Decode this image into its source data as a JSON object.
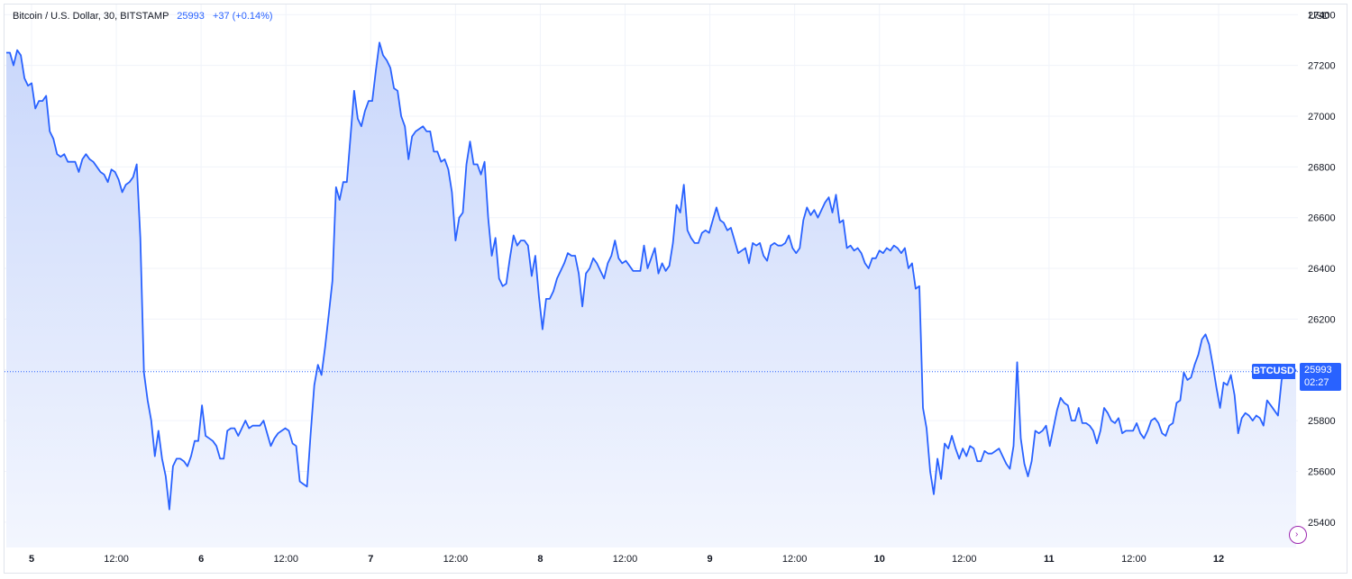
{
  "header": {
    "symbol_title": "Bitcoin / U.S. Dollar, 30, BITSTAMP",
    "last_price": "25993",
    "change": "+37 (+0.14%)"
  },
  "currency_label": "USD",
  "price_badge": {
    "symbol": "BTCUSD",
    "price": "25993",
    "countdown": "02:27"
  },
  "colors": {
    "line": "#2962ff",
    "fill_top": "#c9d7fb",
    "fill_bottom": "#f3f6fe",
    "grid": "#f0f3fa",
    "badge": "#2962ff"
  },
  "chart_data": {
    "type": "area",
    "series": [
      {
        "values": [
          27250,
          27250,
          27200,
          27260,
          27240,
          27150,
          27120,
          27130,
          27030,
          27060,
          27060,
          27080,
          26940,
          26910,
          26850,
          26840,
          26850,
          26820,
          26820,
          26820,
          26780,
          26830,
          26850,
          26830,
          26820,
          26800,
          26780,
          26770,
          26740,
          26790,
          26780,
          26750,
          26700,
          26730,
          26740,
          26760,
          26810,
          26520,
          25990,
          25880,
          25800,
          25660,
          25760,
          25650,
          25580,
          25450,
          25620,
          25650,
          25650,
          25640,
          25620,
          25660,
          25720,
          25720,
          25860,
          25740,
          25730,
          25720,
          25700,
          25650,
          25650,
          25760,
          25770,
          25770,
          25740,
          25770,
          25800,
          25770,
          25780,
          25780,
          25780,
          25800,
          25750,
          25700,
          25730,
          25750,
          25760,
          25770,
          25760,
          25710,
          25700,
          25560,
          25550,
          25540,
          25750,
          25940,
          26020,
          25980,
          26090,
          26220,
          26350,
          26720,
          26670,
          26740,
          26740,
          26920,
          27100,
          26990,
          26960,
          27020,
          27060,
          27060,
          27180,
          27290,
          27240,
          27220,
          27190,
          27110,
          27100,
          27000,
          26960,
          26830,
          26920,
          26940,
          26950,
          26960,
          26940,
          26940,
          26860,
          26860,
          26820,
          26830,
          26790,
          26700,
          26510,
          26600,
          26620,
          26810,
          26900,
          26810,
          26810,
          26770,
          26820,
          26600,
          26450,
          26520,
          26360,
          26330,
          26340,
          26440,
          26530,
          26490,
          26510,
          26510,
          26490,
          26370,
          26450,
          26290,
          26160,
          26280,
          26280,
          26310,
          26360,
          26390,
          26420,
          26460,
          26450,
          26450,
          26380,
          26250,
          26380,
          26400,
          26440,
          26420,
          26390,
          26360,
          26420,
          26450,
          26510,
          26440,
          26420,
          26430,
          26410,
          26390,
          26390,
          26390,
          26490,
          26400,
          26440,
          26480,
          26380,
          26420,
          26390,
          26410,
          26500,
          26650,
          26620,
          26730,
          26550,
          26520,
          26500,
          26500,
          26540,
          26550,
          26540,
          26590,
          26640,
          26590,
          26580,
          26550,
          26560,
          26510,
          26460,
          26470,
          26480,
          26420,
          26500,
          26490,
          26500,
          26450,
          26430,
          26490,
          26500,
          26490,
          26490,
          26500,
          26530,
          26480,
          26460,
          26480,
          26590,
          26640,
          26610,
          26630,
          26600,
          26630,
          26660,
          26680,
          26620,
          26690,
          26580,
          26590,
          26480,
          26490,
          26470,
          26480,
          26460,
          26420,
          26400,
          26440,
          26440,
          26470,
          26460,
          26480,
          26470,
          26490,
          26480,
          26460,
          26480,
          26400,
          26420,
          26320,
          26330,
          25850,
          25770,
          25600,
          25510,
          25650,
          25570,
          25710,
          25690,
          25740,
          25690,
          25650,
          25690,
          25660,
          25700,
          25690,
          25640,
          25640,
          25680,
          25670,
          25670,
          25680,
          25690,
          25660,
          25630,
          25610,
          25700,
          26030,
          25730,
          25630,
          25580,
          25640,
          25760,
          25750,
          25760,
          25780,
          25700,
          25770,
          25840,
          25890,
          25870,
          25860,
          25800,
          25800,
          25850,
          25790,
          25790,
          25780,
          25760,
          25710,
          25760,
          25850,
          25830,
          25800,
          25790,
          25810,
          25750,
          25760,
          25760,
          25760,
          25790,
          25750,
          25730,
          25760,
          25800,
          25810,
          25790,
          25750,
          25740,
          25780,
          25790,
          25870,
          25880,
          25990,
          25960,
          25970,
          26020,
          26060,
          26120,
          26140,
          26100,
          26020,
          25930,
          25850,
          25950,
          25940,
          25980,
          25900,
          25750,
          25810,
          25830,
          25820,
          25800,
          25820,
          25810,
          25780,
          25880,
          25860,
          25840,
          25820,
          25960,
          25990,
          26010,
          26020,
          25993
        ]
      }
    ],
    "ylim": [
      25300,
      27440
    ],
    "yticks": [
      25400,
      25600,
      25800,
      26000,
      26200,
      26400,
      26600,
      26800,
      27000,
      27200,
      27400
    ],
    "xticks": [
      {
        "label": "5",
        "bold": true
      },
      {
        "label": "12:00",
        "bold": false
      },
      {
        "label": "6",
        "bold": true
      },
      {
        "label": "12:00",
        "bold": false
      },
      {
        "label": "7",
        "bold": true
      },
      {
        "label": "12:00",
        "bold": false
      },
      {
        "label": "8",
        "bold": true
      },
      {
        "label": "12:00",
        "bold": false
      },
      {
        "label": "9",
        "bold": true
      },
      {
        "label": "12:00",
        "bold": false
      },
      {
        "label": "10",
        "bold": true
      },
      {
        "label": "12:00",
        "bold": false
      },
      {
        "label": "11",
        "bold": true
      },
      {
        "label": "12:00",
        "bold": false
      },
      {
        "label": "12",
        "bold": true
      }
    ],
    "grid": true,
    "last_value_line": 25993
  }
}
